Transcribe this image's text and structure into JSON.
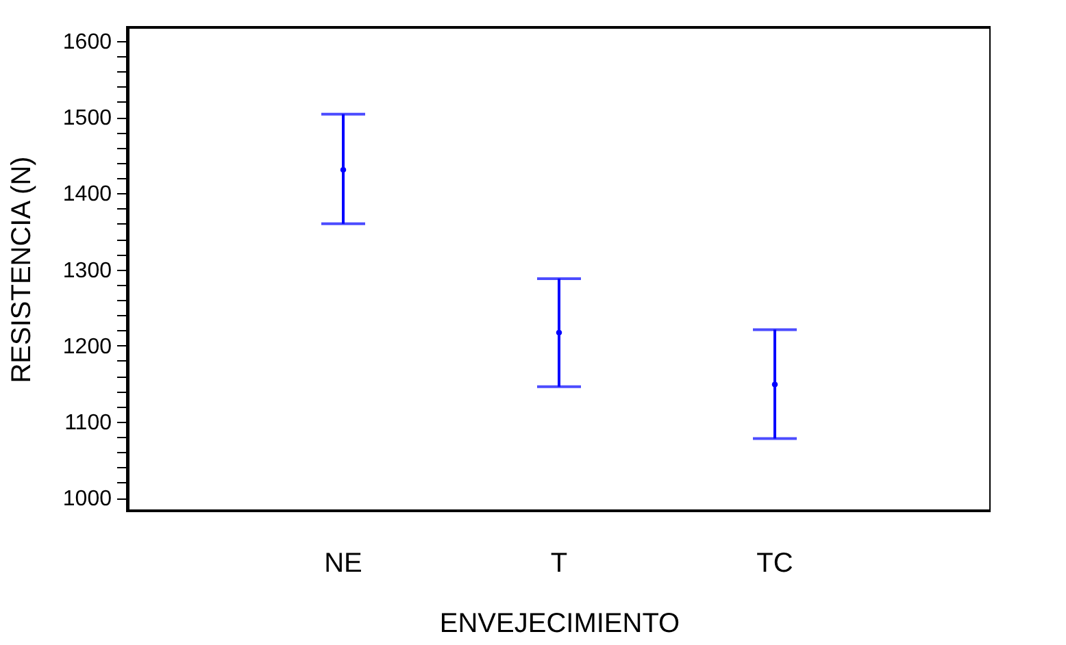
{
  "chart_data": {
    "type": "scatter",
    "xlabel": "ENVEJECIMIENTO",
    "ylabel": "RESISTENCIA (N)",
    "categories": [
      "NE",
      "T",
      "TC"
    ],
    "series": [
      {
        "color": "#0000ff",
        "values": [
          1431,
          1217,
          1149
        ],
        "errors": [
          [
            1360,
            1504
          ],
          [
            1146,
            1288
          ],
          [
            1078,
            1221
          ]
        ]
      }
    ],
    "marker": "circle",
    "ylim": [
      983,
      1618
    ],
    "yticks": [
      1000,
      {
        "value": 1020,
        "label": null
      },
      {
        "value": 1040,
        "label": null
      },
      {
        "value": 1060,
        "label": null
      },
      {
        "value": 1080,
        "label": null
      },
      1100,
      {
        "value": 1120,
        "label": null
      },
      {
        "value": 1140,
        "label": null
      },
      {
        "value": 1160,
        "label": null
      },
      {
        "value": 1180,
        "label": null
      },
      1200,
      {
        "value": 1220,
        "label": null
      },
      {
        "value": 1240,
        "label": null
      },
      {
        "value": 1260,
        "label": null
      },
      {
        "value": 1280,
        "label": null
      },
      1300,
      {
        "value": 1320,
        "label": null
      },
      {
        "value": 1340,
        "label": null
      },
      {
        "value": 1360,
        "label": null
      },
      {
        "value": 1380,
        "label": null
      },
      1400,
      {
        "value": 1420,
        "label": null
      },
      {
        "value": 1440,
        "label": null
      },
      {
        "value": 1460,
        "label": null
      },
      {
        "value": 1480,
        "label": null
      },
      1500,
      {
        "value": 1520,
        "label": null
      },
      {
        "value": 1540,
        "label": null
      },
      {
        "value": 1560,
        "label": null
      },
      {
        "value": 1580,
        "label": null
      },
      1600
    ],
    "grid": false
  }
}
